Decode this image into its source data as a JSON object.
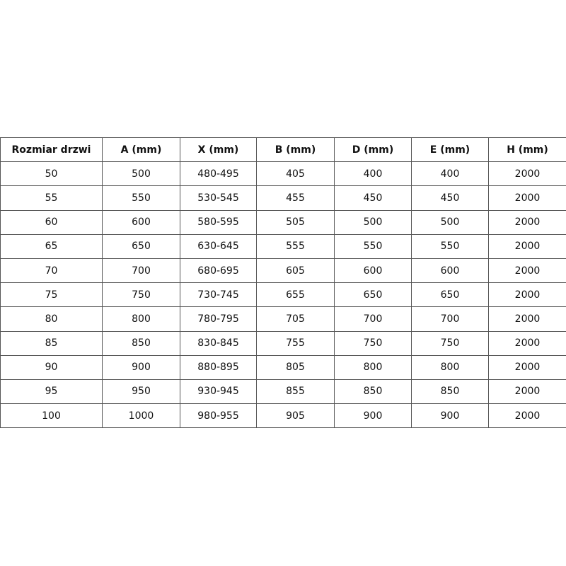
{
  "table": {
    "headers": [
      "Rozmiar drzwi",
      "A (mm)",
      "X (mm)",
      "B (mm)",
      "D (mm)",
      "E (mm)",
      "H (mm)"
    ],
    "rows": [
      [
        "50",
        "500",
        "480-495",
        "405",
        "400",
        "400",
        "2000"
      ],
      [
        "55",
        "550",
        "530-545",
        "455",
        "450",
        "450",
        "2000"
      ],
      [
        "60",
        "600",
        "580-595",
        "505",
        "500",
        "500",
        "2000"
      ],
      [
        "65",
        "650",
        "630-645",
        "555",
        "550",
        "550",
        "2000"
      ],
      [
        "70",
        "700",
        "680-695",
        "605",
        "600",
        "600",
        "2000"
      ],
      [
        "75",
        "750",
        "730-745",
        "655",
        "650",
        "650",
        "2000"
      ],
      [
        "80",
        "800",
        "780-795",
        "705",
        "700",
        "700",
        "2000"
      ],
      [
        "85",
        "850",
        "830-845",
        "755",
        "750",
        "750",
        "2000"
      ],
      [
        "90",
        "900",
        "880-895",
        "805",
        "800",
        "800",
        "2000"
      ],
      [
        "95",
        "950",
        "930-945",
        "855",
        "850",
        "850",
        "2000"
      ],
      [
        "100",
        "1000",
        "980-955",
        "905",
        "900",
        "900",
        "2000"
      ]
    ]
  }
}
